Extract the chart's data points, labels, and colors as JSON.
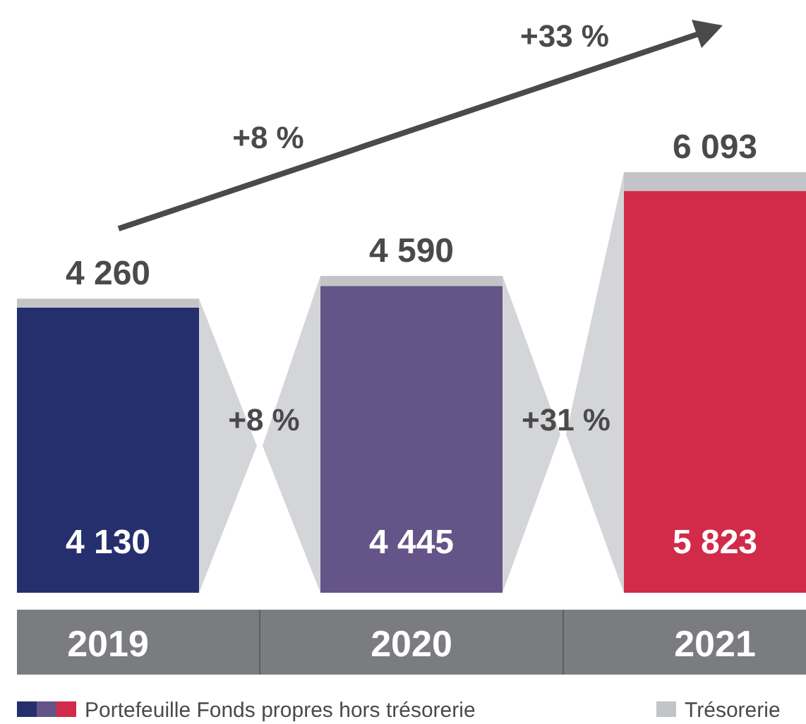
{
  "chart_data": {
    "type": "bar",
    "stacked": true,
    "categories": [
      "2019",
      "2020",
      "2021"
    ],
    "series": [
      {
        "name": "Portefeuille Fonds propres hors trésorerie",
        "colors": [
          "#262f6e",
          "#655487",
          "#d12b49"
        ],
        "values": [
          4130,
          4445,
          5823
        ],
        "value_labels": [
          "4 130",
          "4 445",
          "5 823"
        ]
      },
      {
        "name": "Trésorerie",
        "color": "#c3c4c8",
        "values": [
          130,
          145,
          270
        ]
      }
    ],
    "totals": [
      "4 260",
      "4 590",
      "6 093"
    ],
    "annotations": [
      "+8 %",
      "+33 %",
      "+8 %",
      "+31 %"
    ],
    "legend": "bottom"
  }
}
